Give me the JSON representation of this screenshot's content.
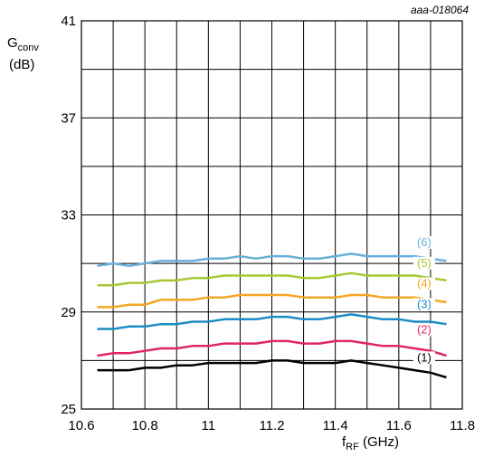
{
  "chart_data": {
    "type": "line",
    "code": "aaa-018064",
    "ylabel": {
      "main": "G",
      "sub": "conv",
      "unit": "(dB)"
    },
    "xlabel": {
      "main": "f",
      "sub": "RF",
      "unit": " (GHz)"
    },
    "xlim": [
      10.6,
      11.8
    ],
    "ylim": [
      25,
      41
    ],
    "xticks": [
      {
        "v": 10.6,
        "label": "10.6"
      },
      {
        "v": 10.8,
        "label": "10.8"
      },
      {
        "v": 11.0,
        "label": "11"
      },
      {
        "v": 11.2,
        "label": "11.2"
      },
      {
        "v": 11.4,
        "label": "11.4"
      },
      {
        "v": 11.6,
        "label": "11.6"
      },
      {
        "v": 11.8,
        "label": "11.8"
      }
    ],
    "yticks": [
      {
        "v": 25,
        "label": "25"
      },
      {
        "v": 29,
        "label": "29"
      },
      {
        "v": 33,
        "label": "33"
      },
      {
        "v": 37,
        "label": "37"
      },
      {
        "v": 41,
        "label": "41"
      }
    ],
    "x_grid_step": 0.1,
    "y_grid_step": 2,
    "x": [
      10.65,
      10.7,
      10.75,
      10.8,
      10.85,
      10.9,
      10.95,
      11.0,
      11.05,
      11.1,
      11.15,
      11.2,
      11.25,
      11.3,
      11.35,
      11.4,
      11.45,
      11.5,
      11.55,
      11.6,
      11.65,
      11.7,
      11.75
    ],
    "series": [
      {
        "name": "(6)",
        "color": "#6aaedc",
        "label_x": 11.68,
        "label_y": 31.75,
        "values": [
          30.9,
          31.0,
          30.9,
          31.0,
          31.1,
          31.1,
          31.1,
          31.2,
          31.2,
          31.3,
          31.2,
          31.3,
          31.3,
          31.2,
          31.2,
          31.3,
          31.4,
          31.3,
          31.3,
          31.3,
          31.3,
          31.2,
          31.1
        ]
      },
      {
        "name": "(5)",
        "color": "#a6c832",
        "label_x": 11.68,
        "label_y": 30.9,
        "values": [
          30.1,
          30.1,
          30.2,
          30.2,
          30.3,
          30.3,
          30.4,
          30.4,
          30.5,
          30.5,
          30.5,
          30.5,
          30.5,
          30.4,
          30.4,
          30.5,
          30.6,
          30.5,
          30.5,
          30.5,
          30.5,
          30.4,
          30.3
        ]
      },
      {
        "name": "(4)",
        "color": "#f5a623",
        "label_x": 11.68,
        "label_y": 30.05,
        "values": [
          29.2,
          29.2,
          29.3,
          29.3,
          29.5,
          29.5,
          29.5,
          29.6,
          29.6,
          29.7,
          29.7,
          29.7,
          29.7,
          29.6,
          29.6,
          29.6,
          29.7,
          29.7,
          29.6,
          29.6,
          29.6,
          29.5,
          29.4
        ]
      },
      {
        "name": "(3)",
        "color": "#1b8cc4",
        "label_x": 11.68,
        "label_y": 29.2,
        "values": [
          28.3,
          28.3,
          28.4,
          28.4,
          28.5,
          28.5,
          28.6,
          28.6,
          28.7,
          28.7,
          28.7,
          28.8,
          28.8,
          28.7,
          28.7,
          28.8,
          28.9,
          28.8,
          28.7,
          28.7,
          28.6,
          28.6,
          28.5
        ]
      },
      {
        "name": "(2)",
        "color": "#e0246c",
        "label_x": 11.68,
        "label_y": 28.15,
        "values": [
          27.2,
          27.3,
          27.3,
          27.4,
          27.5,
          27.5,
          27.6,
          27.6,
          27.7,
          27.7,
          27.7,
          27.8,
          27.8,
          27.7,
          27.7,
          27.8,
          27.8,
          27.7,
          27.6,
          27.6,
          27.5,
          27.4,
          27.2
        ]
      },
      {
        "name": "(1)",
        "color": "#000000",
        "label_x": 11.68,
        "label_y": 27.0,
        "values": [
          26.6,
          26.6,
          26.6,
          26.7,
          26.7,
          26.8,
          26.8,
          26.9,
          26.9,
          26.9,
          26.9,
          27.0,
          27.0,
          26.9,
          26.9,
          26.9,
          27.0,
          26.9,
          26.8,
          26.7,
          26.6,
          26.5,
          26.3
        ]
      }
    ]
  }
}
